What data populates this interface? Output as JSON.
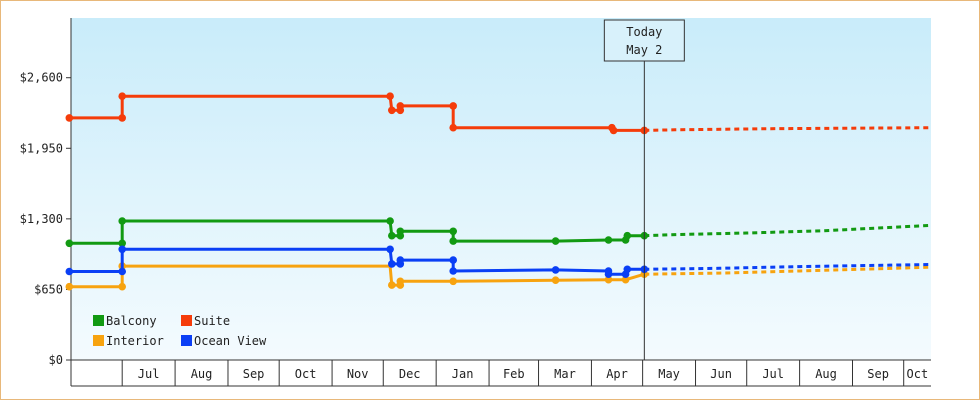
{
  "chart_data": {
    "type": "line",
    "title": "",
    "xlabel": "",
    "ylabel": "",
    "ylim": [
      0,
      3150
    ],
    "yticks": [
      0,
      650,
      1300,
      1950,
      2600
    ],
    "ytick_labels": [
      "$0",
      "$650",
      "$1,300",
      "$1,950",
      "$2,600"
    ],
    "xlim": [
      "2015-06-01",
      "2016-10-17"
    ],
    "month_ticks": [
      "2015-06-01",
      "2015-07-01",
      "2015-08-01",
      "2015-09-01",
      "2015-10-01",
      "2015-11-01",
      "2015-12-01",
      "2016-01-01",
      "2016-02-01",
      "2016-03-01",
      "2016-04-01",
      "2016-05-01",
      "2016-06-01",
      "2016-07-01",
      "2016-08-01",
      "2016-09-01",
      "2016-10-01"
    ],
    "month_labels": [
      "",
      "Jul",
      "Aug",
      "Sep",
      "Oct",
      "Nov",
      "Dec",
      "Jan",
      "Feb",
      "Mar",
      "Apr",
      "May",
      "Jun",
      "Jul",
      "Aug",
      "Sep",
      "Oct"
    ],
    "today": {
      "date": "2016-05-02",
      "line1": "Today",
      "line2": "May 2"
    },
    "grid": false,
    "legend_position": "bottom-left",
    "series": [
      {
        "name": "Balcony",
        "color": "#129a12",
        "history": [
          [
            "2015-05-31",
            1075
          ],
          [
            "2015-07-01",
            1075
          ],
          [
            "2015-07-01",
            1280
          ],
          [
            "2015-12-05",
            1280
          ],
          [
            "2015-12-06",
            1145
          ],
          [
            "2015-12-11",
            1145
          ],
          [
            "2015-12-11",
            1185
          ],
          [
            "2016-01-11",
            1185
          ],
          [
            "2016-01-11",
            1095
          ],
          [
            "2016-03-11",
            1095
          ],
          [
            "2016-04-11",
            1105
          ],
          [
            "2016-04-21",
            1105
          ],
          [
            "2016-04-22",
            1145
          ],
          [
            "2016-05-02",
            1145
          ]
        ],
        "markers": [
          [
            "2015-05-31",
            1075
          ],
          [
            "2015-07-01",
            1075
          ],
          [
            "2015-07-01",
            1280
          ],
          [
            "2015-12-05",
            1280
          ],
          [
            "2015-12-06",
            1145
          ],
          [
            "2015-12-11",
            1145
          ],
          [
            "2015-12-11",
            1185
          ],
          [
            "2016-01-11",
            1185
          ],
          [
            "2016-01-11",
            1095
          ],
          [
            "2016-03-11",
            1095
          ],
          [
            "2016-04-11",
            1105
          ],
          [
            "2016-04-21",
            1105
          ],
          [
            "2016-04-22",
            1145
          ],
          [
            "2016-05-02",
            1145
          ]
        ],
        "forecast": [
          [
            "2016-05-02",
            1145
          ],
          [
            "2016-05-20",
            1155
          ],
          [
            "2016-07-01",
            1170
          ],
          [
            "2016-08-15",
            1190
          ],
          [
            "2016-09-15",
            1215
          ],
          [
            "2016-10-17",
            1240
          ]
        ]
      },
      {
        "name": "Suite",
        "color": "#f53c0a",
        "history": [
          [
            "2015-05-31",
            2230
          ],
          [
            "2015-07-01",
            2230
          ],
          [
            "2015-07-01",
            2430
          ],
          [
            "2015-12-05",
            2430
          ],
          [
            "2015-12-06",
            2300
          ],
          [
            "2015-12-11",
            2300
          ],
          [
            "2015-12-11",
            2340
          ],
          [
            "2016-01-11",
            2340
          ],
          [
            "2016-01-11",
            2140
          ],
          [
            "2016-04-14",
            2140
          ],
          [
            "2016-04-14",
            2115
          ],
          [
            "2016-05-02",
            2115
          ]
        ],
        "markers": [
          [
            "2015-05-31",
            2230
          ],
          [
            "2015-07-01",
            2230
          ],
          [
            "2015-07-01",
            2430
          ],
          [
            "2015-12-05",
            2430
          ],
          [
            "2015-12-06",
            2300
          ],
          [
            "2015-12-11",
            2300
          ],
          [
            "2015-12-11",
            2340
          ],
          [
            "2016-01-11",
            2340
          ],
          [
            "2016-01-11",
            2140
          ],
          [
            "2016-04-13",
            2140
          ],
          [
            "2016-04-14",
            2115
          ],
          [
            "2016-05-02",
            2115
          ]
        ],
        "forecast": [
          [
            "2016-05-02",
            2115
          ],
          [
            "2016-05-20",
            2120
          ],
          [
            "2016-07-15",
            2130
          ],
          [
            "2016-10-17",
            2140
          ]
        ]
      },
      {
        "name": "Interior",
        "color": "#f7a30f",
        "history": [
          [
            "2015-05-31",
            675
          ],
          [
            "2015-07-01",
            675
          ],
          [
            "2015-07-01",
            865
          ],
          [
            "2015-12-05",
            865
          ],
          [
            "2015-12-06",
            690
          ],
          [
            "2015-12-11",
            690
          ],
          [
            "2015-12-11",
            725
          ],
          [
            "2016-01-11",
            725
          ],
          [
            "2016-03-11",
            735
          ],
          [
            "2016-04-11",
            740
          ],
          [
            "2016-04-21",
            740
          ],
          [
            "2016-05-02",
            790
          ]
        ],
        "markers": [
          [
            "2015-05-31",
            675
          ],
          [
            "2015-07-01",
            675
          ],
          [
            "2015-07-01",
            865
          ],
          [
            "2015-12-06",
            690
          ],
          [
            "2015-12-11",
            690
          ],
          [
            "2015-12-11",
            725
          ],
          [
            "2016-01-11",
            725
          ],
          [
            "2016-03-11",
            735
          ],
          [
            "2016-04-11",
            740
          ],
          [
            "2016-04-21",
            740
          ],
          [
            "2016-05-02",
            790
          ]
        ],
        "forecast": [
          [
            "2016-05-02",
            790
          ],
          [
            "2016-06-15",
            800
          ],
          [
            "2016-08-01",
            820
          ],
          [
            "2016-10-17",
            855
          ]
        ]
      },
      {
        "name": "Ocean View",
        "color": "#0a3ff5",
        "history": [
          [
            "2015-05-31",
            815
          ],
          [
            "2015-07-01",
            815
          ],
          [
            "2015-07-01",
            1020
          ],
          [
            "2015-12-05",
            1020
          ],
          [
            "2015-12-06",
            885
          ],
          [
            "2015-12-11",
            885
          ],
          [
            "2015-12-11",
            920
          ],
          [
            "2016-01-11",
            920
          ],
          [
            "2016-01-11",
            820
          ],
          [
            "2016-03-11",
            830
          ],
          [
            "2016-04-11",
            820
          ],
          [
            "2016-04-11",
            790
          ],
          [
            "2016-04-21",
            790
          ],
          [
            "2016-04-22",
            835
          ],
          [
            "2016-05-02",
            835
          ]
        ],
        "markers": [
          [
            "2015-05-31",
            815
          ],
          [
            "2015-07-01",
            815
          ],
          [
            "2015-07-01",
            1020
          ],
          [
            "2015-12-05",
            1020
          ],
          [
            "2015-12-06",
            885
          ],
          [
            "2015-12-11",
            885
          ],
          [
            "2015-12-11",
            920
          ],
          [
            "2016-01-11",
            920
          ],
          [
            "2016-01-11",
            820
          ],
          [
            "2016-03-11",
            830
          ],
          [
            "2016-04-11",
            820
          ],
          [
            "2016-04-11",
            790
          ],
          [
            "2016-04-21",
            790
          ],
          [
            "2016-04-22",
            835
          ],
          [
            "2016-05-02",
            835
          ]
        ],
        "forecast": [
          [
            "2016-05-02",
            835
          ],
          [
            "2016-06-15",
            845
          ],
          [
            "2016-08-01",
            860
          ],
          [
            "2016-10-17",
            880
          ]
        ]
      }
    ]
  }
}
